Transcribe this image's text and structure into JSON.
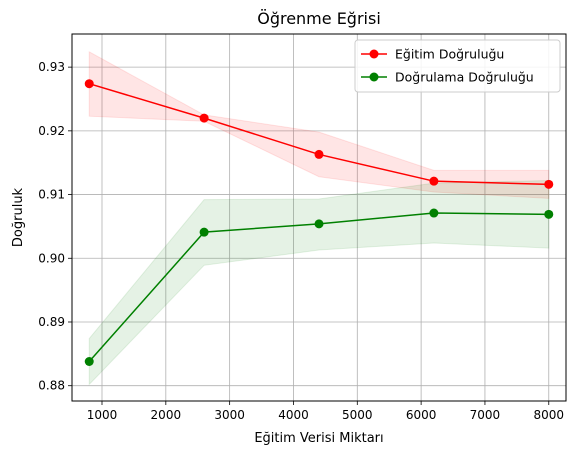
{
  "chart_data": {
    "type": "line",
    "title": "Öğrenme Eğrisi",
    "xlabel": "Eğitim Verisi Miktarı",
    "ylabel": "Doğruluk",
    "xlim": [
      530,
      8270
    ],
    "ylim": [
      0.8776,
      0.9352
    ],
    "xticks": [
      1000,
      2000,
      3000,
      4000,
      5000,
      6000,
      7000,
      8000
    ],
    "yticks": [
      0.88,
      0.89,
      0.9,
      0.91,
      0.92,
      0.93
    ],
    "ytick_labels": [
      "0.88",
      "0.89",
      "0.90",
      "0.91",
      "0.92",
      "0.93"
    ],
    "grid": true,
    "legend_position": "top-right",
    "x": [
      800,
      2600,
      4400,
      6200,
      8000
    ],
    "series": [
      {
        "name": "Eğitim Doğruluğu",
        "color": "#ff0000",
        "values": [
          0.9274,
          0.922,
          0.9163,
          0.9121,
          0.9116
        ],
        "band_upper": [
          0.9324,
          0.9225,
          0.9198,
          0.9138,
          0.9138
        ],
        "band_lower": [
          0.9223,
          0.9215,
          0.9128,
          0.9104,
          0.9094
        ]
      },
      {
        "name": "Doğrulama Doğruluğu",
        "color": "#008000",
        "values": [
          0.8838,
          0.9041,
          0.9054,
          0.9071,
          0.9069
        ],
        "band_upper": [
          0.8874,
          0.9092,
          0.9093,
          0.9118,
          0.9122
        ],
        "band_lower": [
          0.8802,
          0.8989,
          0.9013,
          0.9024,
          0.9016
        ]
      }
    ]
  }
}
